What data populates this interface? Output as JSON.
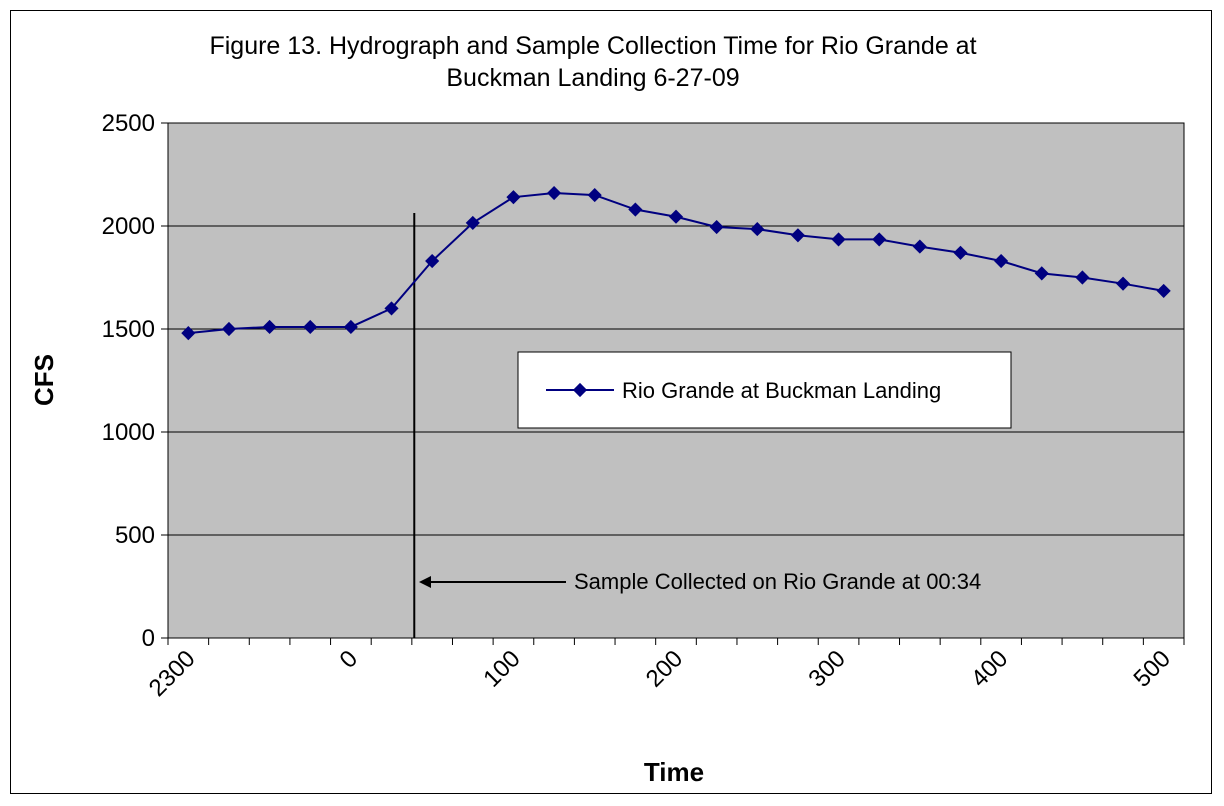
{
  "chart_data": {
    "type": "line",
    "title_lines": [
      "Figure 13. Hydrograph and Sample Collection Time for Rio Grande at",
      "Buckman Landing 6-27-09"
    ],
    "xlabel": "Time",
    "ylabel": "CFS",
    "ylim": [
      0,
      2500
    ],
    "y_ticks": [
      "0",
      "500",
      "1000",
      "1500",
      "2000",
      "2500"
    ],
    "x_tick_labels": [
      {
        "label": "2300",
        "index": 0
      },
      {
        "label": "0",
        "index": 4
      },
      {
        "label": "100",
        "index": 8
      },
      {
        "label": "200",
        "index": 12
      },
      {
        "label": "300",
        "index": 16
      },
      {
        "label": "400",
        "index": 20
      },
      {
        "label": "500",
        "index": 24
      }
    ],
    "grid": "horizontal",
    "background": "#c0c0c0",
    "series": [
      {
        "name": "Rio Grande at Buckman Landing",
        "color": "#000080",
        "marker": "diamond",
        "values": [
          1480,
          1500,
          1510,
          1510,
          1510,
          1600,
          1830,
          2015,
          2140,
          2160,
          2150,
          2080,
          2045,
          1995,
          1985,
          1955,
          1935,
          1935,
          1900,
          1870,
          1830,
          1770,
          1750,
          1720,
          1685
        ]
      }
    ],
    "sample_line_index": 5.56,
    "annotation": "Sample Collected on Rio Grande at 00:34",
    "legend_position": "center-right inside plot"
  }
}
